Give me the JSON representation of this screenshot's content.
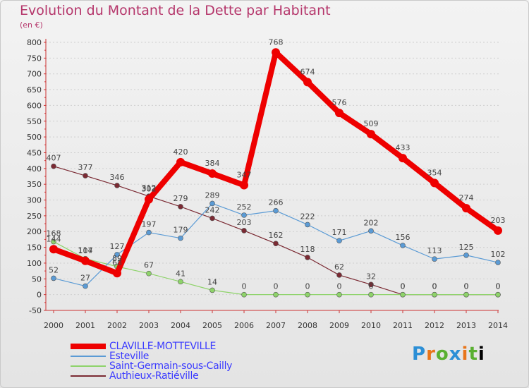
{
  "chart_data": {
    "type": "line",
    "title": "Evolution du Montant de la Dette par Habitant",
    "subtitle": "(en €)",
    "x": [
      2000,
      2001,
      2002,
      2003,
      2004,
      2005,
      2006,
      2007,
      2008,
      2009,
      2010,
      2011,
      2012,
      2013,
      2014
    ],
    "y_ticks": [
      -50,
      0,
      50,
      100,
      150,
      200,
      250,
      300,
      350,
      400,
      450,
      500,
      550,
      600,
      650,
      700,
      750,
      800
    ],
    "ylim": [
      -50,
      800
    ],
    "grid": "horizontal dashed",
    "legend_position": "bottom-left",
    "series": [
      {
        "name": "CLAVILLE-MOTTEVILLE",
        "color": "#ee0000",
        "values": [
          144,
          107,
          68,
          302,
          420,
          384,
          347,
          768,
          674,
          576,
          509,
          433,
          354,
          274,
          203
        ]
      },
      {
        "name": "Esteville",
        "color": "#5b9bd5",
        "values": [
          52,
          27,
          127,
          197,
          179,
          289,
          252,
          266,
          222,
          171,
          202,
          156,
          113,
          125,
          102
        ]
      },
      {
        "name": "Saint-Germain-sous-Cailly",
        "color": "#8ed36a",
        "values": [
          168,
          114,
          89,
          67,
          41,
          14,
          0,
          0,
          0,
          0,
          0,
          0,
          0,
          0,
          0
        ]
      },
      {
        "name": "Authieux-Ratiéville",
        "color": "#7b2a33",
        "values": [
          407,
          377,
          346,
          312,
          279,
          242,
          203,
          162,
          118,
          62,
          32,
          0,
          0,
          0,
          0
        ]
      }
    ]
  },
  "brand": {
    "letters": [
      "P",
      "r",
      "o",
      "x",
      "i",
      "t",
      "i"
    ]
  }
}
